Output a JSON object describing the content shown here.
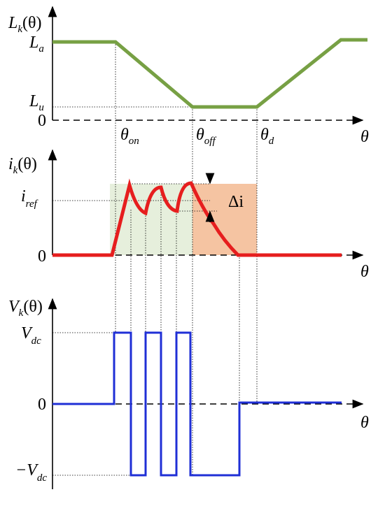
{
  "panels": [
    {
      "axis_label": {
        "base": "L",
        "sub": "k",
        "arg": "(θ)"
      },
      "levels": [
        {
          "base": "L",
          "sub": "a"
        },
        {
          "base": "L",
          "sub": "u"
        },
        {
          "base": "0"
        }
      ],
      "x_label": "θ"
    },
    {
      "axis_label": {
        "base": "i",
        "sub": "k",
        "arg": "(θ)"
      },
      "levels": [
        {
          "base": "i",
          "sub": "ref"
        },
        {
          "base": "0"
        }
      ],
      "x_label": "θ"
    },
    {
      "axis_label": {
        "base": "V",
        "sub": "k",
        "arg": "(θ)"
      },
      "levels": [
        {
          "base": "V",
          "sub": "dc"
        },
        {
          "base": "0"
        },
        {
          "base": "−V",
          "sub": "dc"
        }
      ],
      "x_label": "θ"
    }
  ],
  "angles": [
    {
      "base": "θ",
      "sub": "on"
    },
    {
      "base": "θ",
      "sub": "off"
    },
    {
      "base": "θ",
      "sub": "d"
    }
  ],
  "delta_label": "Δi"
}
